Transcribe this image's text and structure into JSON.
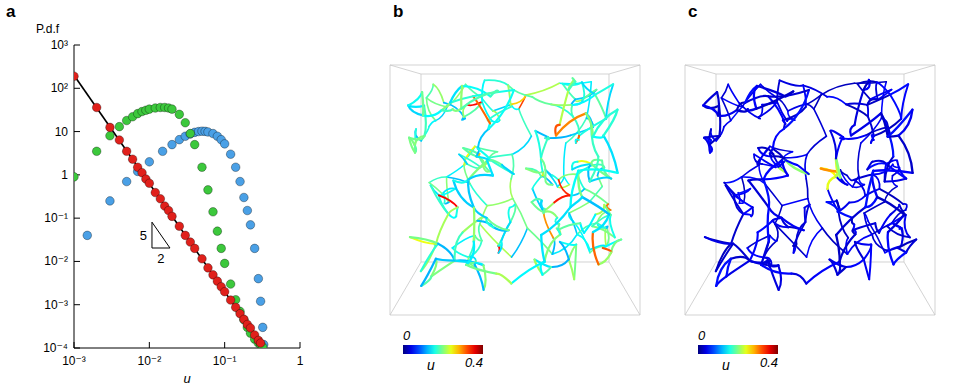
{
  "chart_data": [
    {
      "panel": "a",
      "type": "scatter",
      "log": true,
      "xlabel": "u",
      "ylabel": "P.d.f",
      "xlim": [
        0.001,
        1
      ],
      "ylim": [
        0.0001,
        1000
      ],
      "xticks": [
        {
          "value": 0.001,
          "label": "10⁻³"
        },
        {
          "value": 0.01,
          "label": "10⁻²"
        },
        {
          "value": 0.1,
          "label": "10⁻¹"
        },
        1
      ],
      "yticks": [
        {
          "value": 0.0001,
          "label": "10⁻⁴"
        },
        {
          "value": 0.001,
          "label": "10⁻³"
        },
        {
          "value": 0.01,
          "label": "10⁻²"
        },
        {
          "value": 0.1,
          "label": "10⁻¹"
        },
        1,
        10,
        {
          "value": 100,
          "label": "10²"
        },
        {
          "value": 1000,
          "label": "10³"
        }
      ],
      "annotations": [
        {
          "text": "5"
        },
        {
          "text": "2"
        }
      ],
      "series": [
        {
          "color": "#e0201b",
          "marker": "circle",
          "x": [
            0.001,
            0.002,
            0.003,
            0.004,
            0.005,
            0.006,
            0.007,
            0.008,
            0.009,
            0.01,
            0.012,
            0.014,
            0.016,
            0.018,
            0.02,
            0.025,
            0.03,
            0.035,
            0.04,
            0.05,
            0.06,
            0.07,
            0.08,
            0.09,
            0.1,
            0.12,
            0.14,
            0.16,
            0.18,
            0.2,
            0.22,
            0.25,
            0.28,
            0.3
          ],
          "values": [
            190,
            36,
            12.5,
            6.4,
            3.5,
            2.3,
            1.5,
            1.12,
            0.8,
            0.64,
            0.39,
            0.28,
            0.19,
            0.15,
            0.11,
            0.065,
            0.04,
            0.028,
            0.02,
            0.0115,
            0.0071,
            0.0049,
            0.0035,
            0.0026,
            0.002,
            0.00128,
            0.00087,
            0.00062,
            0.00046,
            0.00035,
            0.00029,
            0.0002,
            0.00015,
            0.00013
          ]
        },
        {
          "color": "#3cc83c",
          "marker": "circle",
          "x": [
            0.001,
            0.002,
            0.003,
            0.004,
            0.005,
            0.006,
            0.007,
            0.008,
            0.009,
            0.01,
            0.012,
            0.014,
            0.016,
            0.018,
            0.02,
            0.025,
            0.03,
            0.035,
            0.04,
            0.05,
            0.06,
            0.07,
            0.08,
            0.09,
            0.1,
            0.12,
            0.14,
            0.16,
            0.18,
            0.2,
            0.22,
            0.25,
            0.28,
            0.3,
            0.32
          ],
          "values": [
            0.9,
            3.5,
            8,
            13,
            18,
            22,
            26,
            29,
            31,
            33,
            35,
            36,
            36,
            35,
            33,
            25,
            16,
            9,
            5,
            1.5,
            0.45,
            0.14,
            0.05,
            0.02,
            0.009,
            0.003,
            0.0013,
            0.0007,
            0.00045,
            0.0003,
            0.00022,
            0.00016,
            0.00013,
            0.00012,
            0.000105
          ]
        },
        {
          "color": "#4aa0e6",
          "marker": "circle",
          "x": [
            0.0015,
            0.003,
            0.005,
            0.007,
            0.01,
            0.015,
            0.02,
            0.025,
            0.03,
            0.035,
            0.04,
            0.045,
            0.05,
            0.055,
            0.06,
            0.07,
            0.08,
            0.09,
            0.1,
            0.12,
            0.14,
            0.16,
            0.18,
            0.2,
            0.22,
            0.25,
            0.28,
            0.3,
            0.32,
            0.33
          ],
          "values": [
            0.04,
            0.25,
            0.7,
            1.2,
            2,
            3.5,
            5,
            6.5,
            7.8,
            8.8,
            9.6,
            10,
            10.2,
            10.1,
            9.8,
            9,
            7.8,
            6.5,
            5.2,
            3,
            1.5,
            0.7,
            0.3,
            0.15,
            0.07,
            0.02,
            0.004,
            0.0012,
            0.0003,
            0.00012
          ]
        },
        {
          "type": "line",
          "color": "#000000",
          "line_style": "solid",
          "x": [
            0.001,
            0.33
          ],
          "values": [
            200,
            0.000101
          ]
        }
      ]
    },
    {
      "panel": "b",
      "type": "network",
      "colorbar_label": "u",
      "colorbar_range": [
        0,
        0.4
      ],
      "colorbar_ticks": [
        0,
        0.4
      ]
    },
    {
      "panel": "c",
      "type": "network",
      "colorbar_label": "u",
      "colorbar_range": [
        0,
        0.4
      ],
      "colorbar_ticks": [
        0,
        0.4
      ]
    }
  ]
}
